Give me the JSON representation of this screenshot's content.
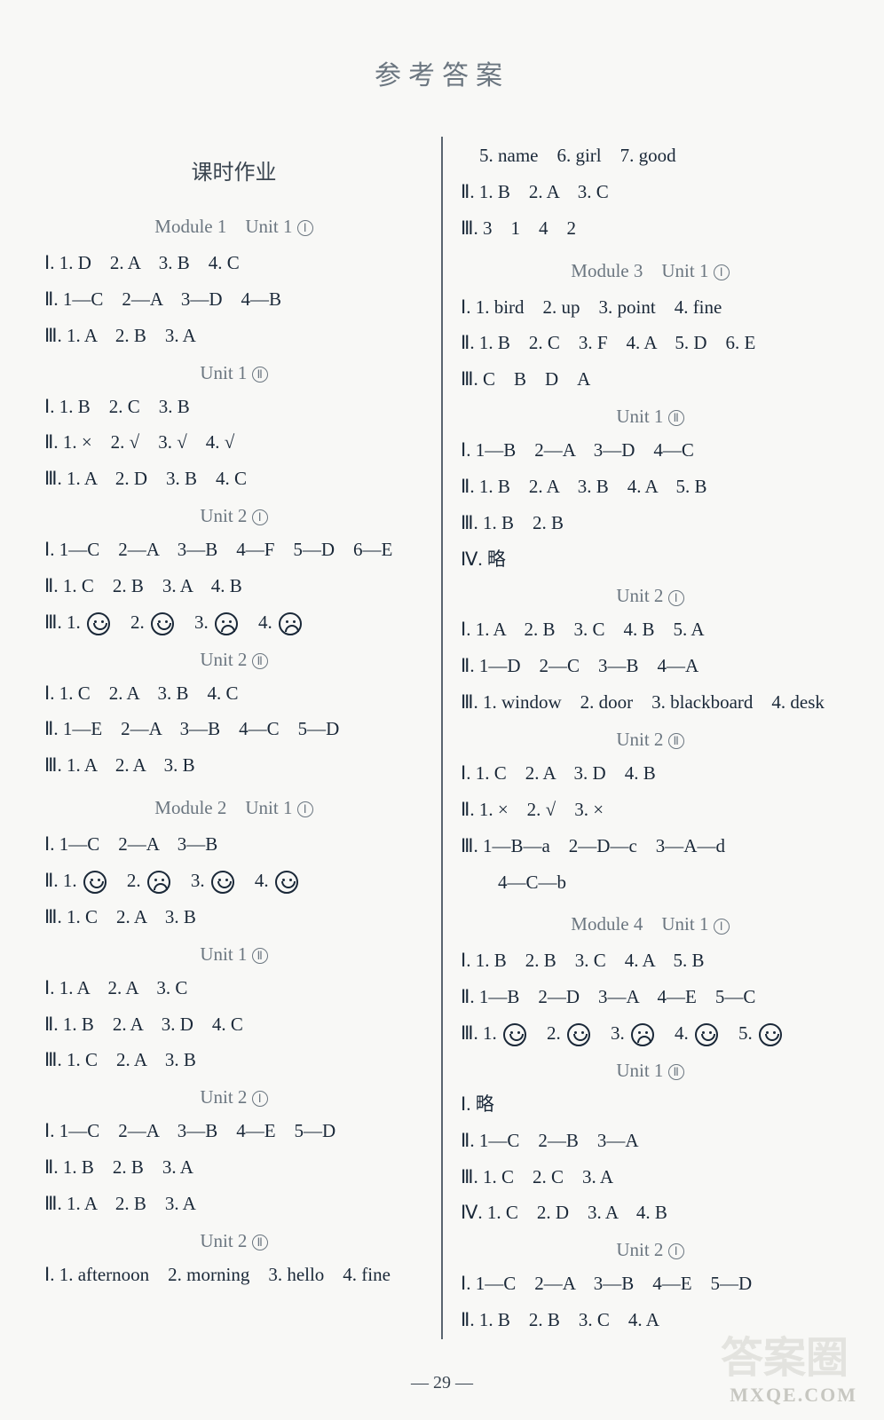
{
  "title": "参考答案",
  "page_number": "— 29 —",
  "left": {
    "section": "课时作业",
    "blocks": [
      {
        "type": "module",
        "text": "Module 1　Unit 1 ①"
      },
      {
        "type": "line",
        "text": "Ⅰ. 1. D　2. A　3. B　4. C"
      },
      {
        "type": "line",
        "text": "Ⅱ. 1—C　2—A　3—D　4—B"
      },
      {
        "type": "line",
        "text": "Ⅲ. 1. A　2. B　3. A"
      },
      {
        "type": "unit",
        "text": "Unit 1 ②"
      },
      {
        "type": "line",
        "text": "Ⅰ. 1. B　2. C　3. B"
      },
      {
        "type": "line",
        "text": "Ⅱ. 1. ×　2. √　3. √　4. √"
      },
      {
        "type": "line",
        "text": "Ⅲ. 1. A　2. D　3. B　4. C"
      },
      {
        "type": "unit",
        "text": "Unit 2 ①"
      },
      {
        "type": "line",
        "text": "Ⅰ. 1—C　2—A　3—B　4—F　5—D　6—E"
      },
      {
        "type": "line",
        "text": "Ⅱ. 1. C　2. B　3. A　4. B"
      },
      {
        "type": "faces",
        "prefix": "Ⅲ. ",
        "items": [
          "smile",
          "smile",
          "sad",
          "sad"
        ]
      },
      {
        "type": "unit",
        "text": "Unit 2 ②"
      },
      {
        "type": "line",
        "text": "Ⅰ. 1. C　2. A　3. B　4. C"
      },
      {
        "type": "line",
        "text": "Ⅱ. 1—E　2—A　3—B　4—C　5—D"
      },
      {
        "type": "line",
        "text": "Ⅲ. 1. A　2. A　3. B"
      },
      {
        "type": "module",
        "text": "Module 2　Unit 1 ①"
      },
      {
        "type": "line",
        "text": "Ⅰ. 1—C　2—A　3—B"
      },
      {
        "type": "faces",
        "prefix": "Ⅱ. ",
        "items": [
          "smile",
          "sad",
          "smile",
          "smile"
        ]
      },
      {
        "type": "line",
        "text": "Ⅲ. 1. C　2. A　3. B"
      },
      {
        "type": "unit",
        "text": "Unit 1 ②"
      },
      {
        "type": "line",
        "text": "Ⅰ. 1. A　2. A　3. C"
      },
      {
        "type": "line",
        "text": "Ⅱ. 1. B　2. A　3. D　4. C"
      },
      {
        "type": "line",
        "text": "Ⅲ. 1. C　2. A　3. B"
      },
      {
        "type": "unit",
        "text": "Unit 2 ①"
      },
      {
        "type": "line",
        "text": "Ⅰ. 1—C　2—A　3—B　4—E　5—D"
      },
      {
        "type": "line",
        "text": "Ⅱ. 1. B　2. B　3. A"
      },
      {
        "type": "line",
        "text": "Ⅲ. 1. A　2. B　3. A"
      },
      {
        "type": "unit",
        "text": "Unit 2 ②"
      },
      {
        "type": "line",
        "text": "Ⅰ. 1. afternoon　2. morning　3. hello　4. fine"
      }
    ]
  },
  "right": {
    "blocks": [
      {
        "type": "line",
        "text": "　5. name　6. girl　7. good"
      },
      {
        "type": "line",
        "text": "Ⅱ. 1. B　2. A　3. C"
      },
      {
        "type": "line",
        "text": "Ⅲ. 3　1　4　2"
      },
      {
        "type": "module",
        "text": "Module 3　Unit 1 ①"
      },
      {
        "type": "line",
        "text": "Ⅰ. 1. bird　2. up　3. point　4. fine"
      },
      {
        "type": "line",
        "text": "Ⅱ. 1. B　2. C　3. F　4. A　5. D　6. E"
      },
      {
        "type": "line",
        "text": "Ⅲ. C　B　D　A"
      },
      {
        "type": "unit",
        "text": "Unit 1 ②"
      },
      {
        "type": "line",
        "text": "Ⅰ. 1—B　2—A　3—D　4—C"
      },
      {
        "type": "line",
        "text": "Ⅱ. 1. B　2. A　3. B　4. A　5. B"
      },
      {
        "type": "line",
        "text": "Ⅲ. 1. B　2. B"
      },
      {
        "type": "line",
        "text": "Ⅳ. 略"
      },
      {
        "type": "unit",
        "text": "Unit 2 ①"
      },
      {
        "type": "line",
        "text": "Ⅰ. 1. A　2. B　3. C　4. B　5. A"
      },
      {
        "type": "line",
        "text": "Ⅱ. 1—D　2—C　3—B　4—A"
      },
      {
        "type": "line",
        "text": "Ⅲ. 1. window　2. door　3. blackboard　4. desk"
      },
      {
        "type": "unit",
        "text": "Unit 2 ②"
      },
      {
        "type": "line",
        "text": "Ⅰ. 1. C　2. A　3. D　4. B"
      },
      {
        "type": "line",
        "text": "Ⅱ. 1. ×　2. √　3. ×"
      },
      {
        "type": "line",
        "text": "Ⅲ. 1—B—a　2—D—c　3—A—d"
      },
      {
        "type": "line",
        "text": "　　4—C—b"
      },
      {
        "type": "module",
        "text": "Module 4　Unit 1 ①"
      },
      {
        "type": "line",
        "text": "Ⅰ. 1. B　2. B　3. C　4. A　5. B"
      },
      {
        "type": "line",
        "text": "Ⅱ. 1—B　2—D　3—A　4—E　5—C"
      },
      {
        "type": "faces",
        "prefix": "Ⅲ. ",
        "items": [
          "smile",
          "smile",
          "sad",
          "smile",
          "smile"
        ]
      },
      {
        "type": "unit",
        "text": "Unit 1 ②"
      },
      {
        "type": "line",
        "text": "Ⅰ. 略"
      },
      {
        "type": "line",
        "text": "Ⅱ. 1—C　2—B　3—A"
      },
      {
        "type": "line",
        "text": "Ⅲ. 1. C　2. C　3. A"
      },
      {
        "type": "line",
        "text": "Ⅳ. 1. C　2. D　3. A　4. B"
      },
      {
        "type": "unit",
        "text": "Unit 2 ①"
      },
      {
        "type": "line",
        "text": "Ⅰ. 1—C　2—A　3—B　4—E　5—D"
      },
      {
        "type": "line",
        "text": "Ⅱ. 1. B　2. B　3. C　4. A"
      }
    ]
  },
  "watermarks": {
    "w1": "答案圈",
    "w2": "MXQE.COM"
  },
  "colors": {
    "background": "#f8f8f6",
    "text": "#1a2838",
    "heading": "#6b7680",
    "divider": "#5a6570"
  }
}
